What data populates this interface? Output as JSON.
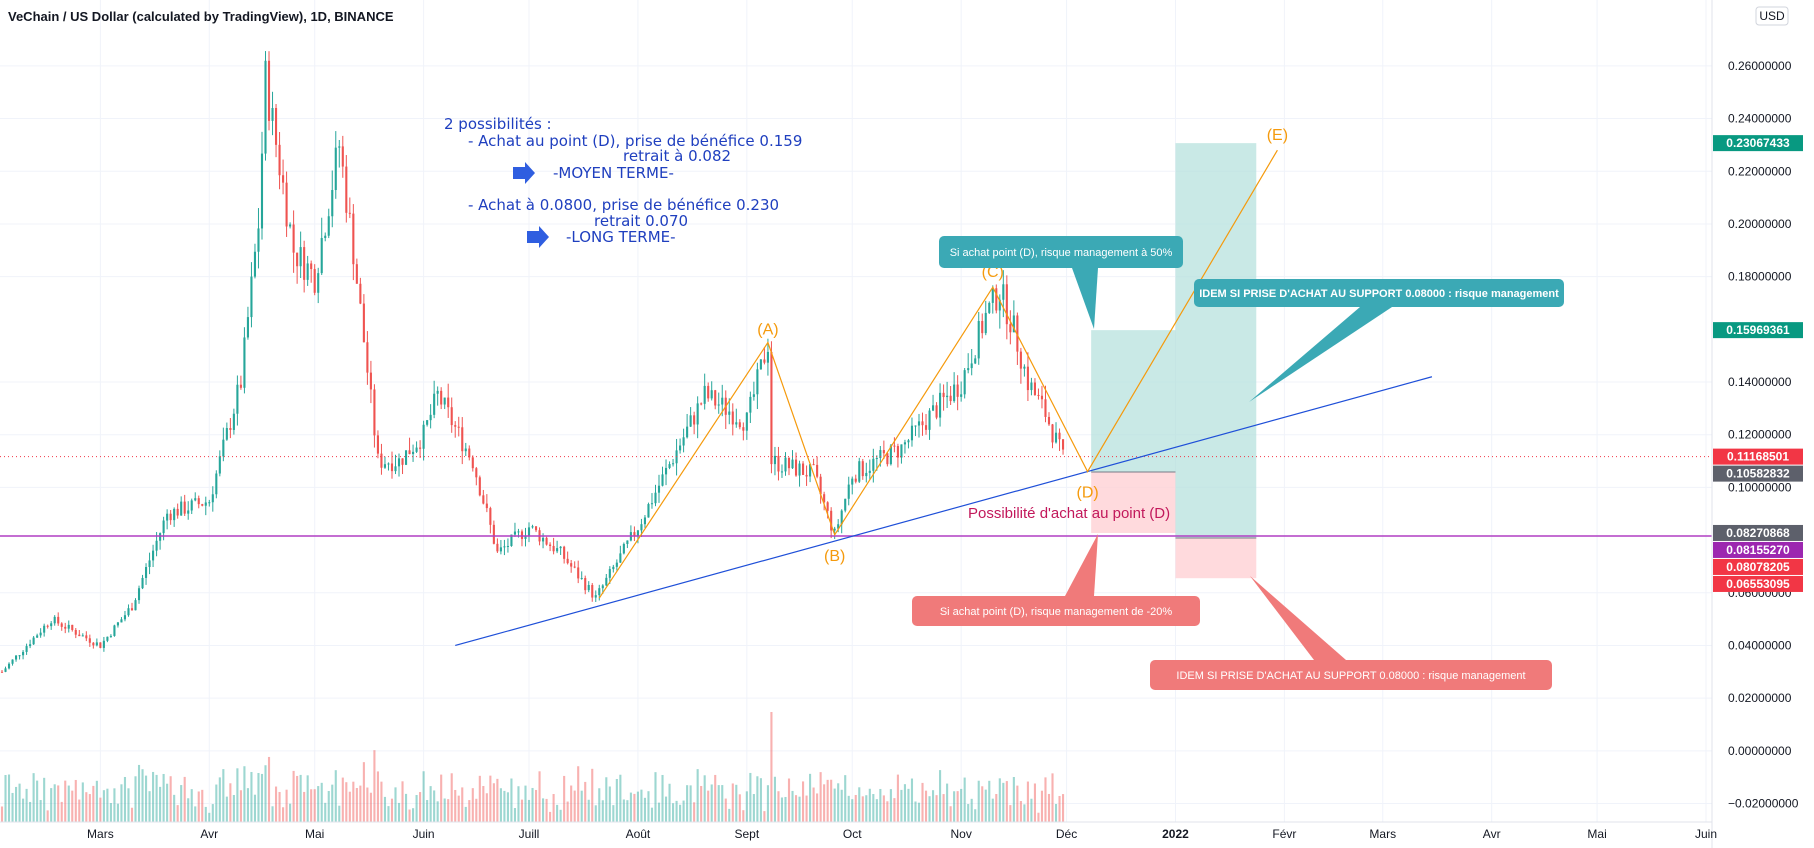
{
  "header": {
    "symbol_title": "VeChain / US Dollar (calculated by TradingView), 1D, BINANCE",
    "currency_badge": "USD"
  },
  "y_axis_labels": [
    "0.26000000",
    "0.24000000",
    "0.22000000",
    "0.20000000",
    "0.18000000",
    "0.14000000",
    "0.12000000",
    "0.10000000",
    "0.06000000",
    "0.04000000",
    "0.02000000",
    "0.00000000",
    "−0.02000000"
  ],
  "x_axis_labels": [
    "Mars",
    "Avr",
    "Mai",
    "Juin",
    "Juill",
    "Août",
    "Sept",
    "Oct",
    "Nov",
    "Déc",
    "2022",
    "Févr",
    "Mars",
    "Avr",
    "Mai",
    "Juin"
  ],
  "x_axis_bold_index": 10,
  "price_tags": [
    {
      "value": "0.23067433",
      "color": "#089981"
    },
    {
      "value": "0.15969361",
      "color": "#089981"
    },
    {
      "value": "0.11168501",
      "color": "#f23645"
    },
    {
      "value": "0.10582832",
      "color": "#5d606b"
    },
    {
      "value": "0.08270868",
      "color": "#5d606b"
    },
    {
      "value": "0.08155270",
      "color": "#9c27b0"
    },
    {
      "value": "0.08078205",
      "color": "#f23645"
    },
    {
      "value": "0.06553095",
      "color": "#f23645"
    }
  ],
  "annotations": {
    "plan_title": "2 possibilités :",
    "plan_line1": "- Achat au point (D), prise de bénéfice 0.159",
    "plan_line2": "retrait à 0.082",
    "plan_line3": "-MOYEN TERME-",
    "plan_line4": "- Achat à 0.0800, prise de bénéfice 0.230",
    "plan_line5": "retrait 0.070",
    "plan_line6": "-LONG TERME-",
    "buy_point_note": "Possibilité d'achat au point (D)"
  },
  "wave_labels": {
    "a": "(A)",
    "b": "(B)",
    "c": "(C)",
    "d": "(D)",
    "e": "(E)"
  },
  "callouts": {
    "teal_top": "Si achat point (D), risque management à 50%",
    "teal_right": "IDEM SI PRISE D'ACHAT AU SUPPORT 0.08000 : risque management",
    "red_mid": "Si achat point (D), risque management de -20%",
    "red_bottom": "IDEM SI PRISE D'ACHAT AU SUPPORT 0.08000 : risque management"
  },
  "colors": {
    "up": "#26a69a",
    "down": "#ef5350",
    "wave": "#f59a0c",
    "trendline": "#1e4fd8",
    "support": "#b03fc4",
    "profit_zone": "#b2dfdb",
    "loss_zone": "#ffcdd2",
    "callout_teal": "#3ba9b5",
    "callout_red": "#f07a7a"
  },
  "chart_data": {
    "type": "candlestick",
    "title": "VeChain / US Dollar (calculated by TradingView), 1D, BINANCE",
    "y_unit": "USD",
    "ylim": [
      -0.027,
      0.285
    ],
    "x_range": [
      "2021-02-01",
      "2022-06-01"
    ],
    "grid": true,
    "price_keypoints": [
      [
        "2021-02-01",
        0.03
      ],
      [
        "2021-02-15",
        0.05
      ],
      [
        "2021-03-01",
        0.04
      ],
      [
        "2021-03-10",
        0.055
      ],
      [
        "2021-03-20",
        0.09
      ],
      [
        "2021-04-01",
        0.095
      ],
      [
        "2021-04-10",
        0.14
      ],
      [
        "2021-04-15",
        0.2
      ],
      [
        "2021-04-17",
        0.255
      ],
      [
        "2021-04-25",
        0.19
      ],
      [
        "2021-05-01",
        0.18
      ],
      [
        "2021-05-08",
        0.23
      ],
      [
        "2021-05-12",
        0.19
      ],
      [
        "2021-05-19",
        0.11
      ],
      [
        "2021-05-25",
        0.11
      ],
      [
        "2021-06-01",
        0.12
      ],
      [
        "2021-06-05",
        0.135
      ],
      [
        "2021-06-15",
        0.11
      ],
      [
        "2021-06-22",
        0.075
      ],
      [
        "2021-07-01",
        0.085
      ],
      [
        "2021-07-10",
        0.075
      ],
      [
        "2021-07-20",
        0.058
      ],
      [
        "2021-08-01",
        0.085
      ],
      [
        "2021-08-20",
        0.135
      ],
      [
        "2021-09-01",
        0.125
      ],
      [
        "2021-09-07",
        0.155
      ],
      [
        "2021-09-08",
        0.11
      ],
      [
        "2021-09-20",
        0.105
      ],
      [
        "2021-09-26",
        0.082
      ],
      [
        "2021-10-01",
        0.105
      ],
      [
        "2021-10-15",
        0.115
      ],
      [
        "2021-10-25",
        0.13
      ],
      [
        "2021-11-01",
        0.14
      ],
      [
        "2021-11-08",
        0.165
      ],
      [
        "2021-11-12",
        0.175
      ],
      [
        "2021-11-16",
        0.16
      ],
      [
        "2021-11-20",
        0.14
      ],
      [
        "2021-11-25",
        0.128
      ],
      [
        "2021-11-30",
        0.111
      ]
    ],
    "last_price": 0.11168501,
    "wave_points": [
      {
        "label": "start",
        "date": "2021-07-21",
        "price": 0.058
      },
      {
        "label": "(A)",
        "date": "2021-09-07",
        "price": 0.155
      },
      {
        "label": "(B)",
        "date": "2021-09-26",
        "price": 0.082
      },
      {
        "label": "(C)",
        "date": "2021-11-10",
        "price": 0.176
      },
      {
        "label": "(D)",
        "date": "2021-12-07",
        "price": 0.106
      },
      {
        "label": "(E)",
        "date": "2022-01-30",
        "price": 0.228
      }
    ],
    "trendline": [
      {
        "date": "2021-06-10",
        "price": 0.04
      },
      {
        "date": "2022-03-15",
        "price": 0.142
      }
    ],
    "support_level": 0.0815527,
    "long_position_d": {
      "entry": 0.10582832,
      "target": 0.15969361,
      "stop": 0.08270868,
      "from": "2021-12-08",
      "to": "2022-01-01"
    },
    "long_position_support": {
      "entry": 0.08078205,
      "target": 0.23067433,
      "stop": 0.06553095,
      "from": "2022-01-01",
      "to": "2022-01-24"
    }
  }
}
